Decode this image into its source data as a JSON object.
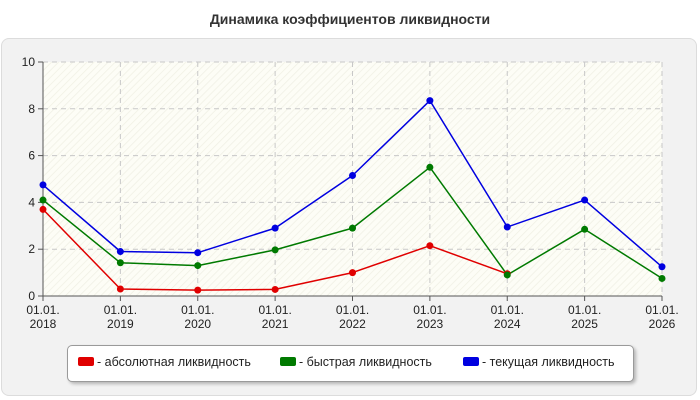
{
  "chart_data": {
    "type": "line",
    "title": "Динамика коэффициентов ликвидности",
    "xlabel": "",
    "ylabel": "",
    "categories": [
      [
        "01.01.",
        "2018"
      ],
      [
        "01.01.",
        "2019"
      ],
      [
        "01.01.",
        "2020"
      ],
      [
        "01.01.",
        "2021"
      ],
      [
        "01.01.",
        "2022"
      ],
      [
        "01.01.",
        "2023"
      ],
      [
        "01.01.",
        "2024"
      ],
      [
        "01.01.",
        "2025"
      ],
      [
        "01.01.",
        "2026"
      ]
    ],
    "ylim": [
      0,
      10
    ],
    "yticks": [
      0,
      2,
      4,
      6,
      8,
      10
    ],
    "grid": true,
    "legend_position": "bottom",
    "series": [
      {
        "name": "- абсолютная ликвидность",
        "color": "#e00000",
        "values": [
          3.7,
          0.3,
          0.25,
          0.28,
          1.0,
          2.15,
          0.95,
          null,
          null
        ]
      },
      {
        "name": "- быстрая ликвидность",
        "color": "#007a00",
        "values": [
          4.1,
          1.42,
          1.3,
          1.97,
          2.9,
          5.5,
          0.9,
          2.85,
          0.75
        ]
      },
      {
        "name": "- текущая ликвидность",
        "color": "#0000e0",
        "values": [
          4.75,
          1.9,
          1.85,
          2.9,
          5.15,
          8.35,
          2.95,
          4.1,
          1.25
        ]
      }
    ]
  }
}
